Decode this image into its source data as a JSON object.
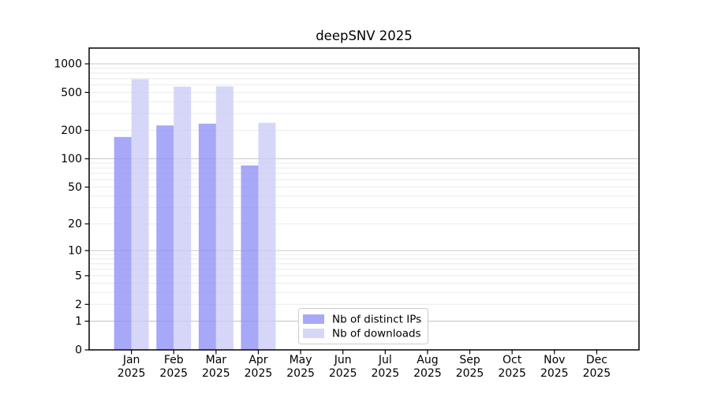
{
  "chart_data": {
    "type": "bar",
    "title": "deepSNV 2025",
    "categories": [
      "Jan",
      "Feb",
      "Mar",
      "Apr",
      "May",
      "Jun",
      "Jul",
      "Aug",
      "Sep",
      "Oct",
      "Nov",
      "Dec"
    ],
    "x_tick_year": "2025",
    "series": [
      {
        "name": "Nb of distinct IPs",
        "color": "#a8a8f8",
        "values": [
          170,
          225,
          235,
          85,
          0,
          0,
          0,
          0,
          0,
          0,
          0,
          0
        ]
      },
      {
        "name": "Nb of downloads",
        "color": "#d6d6f8",
        "values": [
          690,
          575,
          580,
          240,
          0,
          0,
          0,
          0,
          0,
          0,
          0,
          0
        ]
      }
    ],
    "y_ticks": [
      0,
      1,
      2,
      5,
      10,
      20,
      50,
      100,
      200,
      500,
      1000
    ],
    "y_scale": "log1p",
    "ylim": [
      0,
      1465
    ],
    "grid": true,
    "grid_major_at": [
      1,
      10,
      100,
      1000
    ],
    "legend_position": "inside-bottom-center",
    "colors": {
      "grid_major": "#c9c9c9",
      "grid_minor": "#ebebeb",
      "axis": "#000000",
      "background": "#ffffff"
    }
  }
}
